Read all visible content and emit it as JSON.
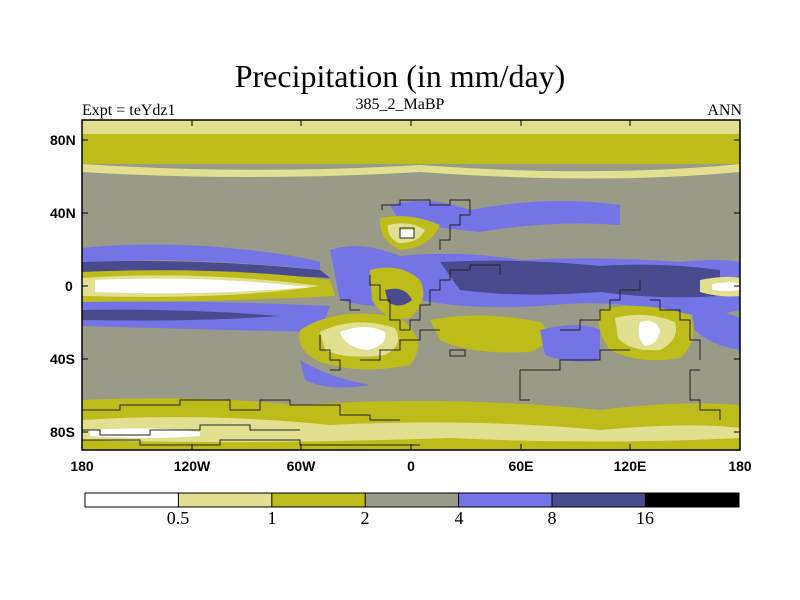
{
  "title": "Precipitation (in mm/day)",
  "subtitle_left": "Expt = teYdz1",
  "subtitle_center": "385_2_MaBP",
  "subtitle_right": "ANN",
  "y_axis_labels": [
    "80N",
    "40N",
    "0",
    "40S",
    "80S"
  ],
  "x_axis_labels": [
    "180",
    "120W",
    "60W",
    "0",
    "60E",
    "120E",
    "180"
  ],
  "colorbar": {
    "levels": [
      "0.5",
      "1",
      "2",
      "4",
      "8",
      "16"
    ],
    "colors": [
      "#ffffff",
      "#e0e090",
      "#bcbc1a",
      "#9a9a88",
      "#7474e6",
      "#4a4a8e",
      "#000000"
    ]
  },
  "palette": {
    "frame": "#000000",
    "coast": "#222222"
  }
}
